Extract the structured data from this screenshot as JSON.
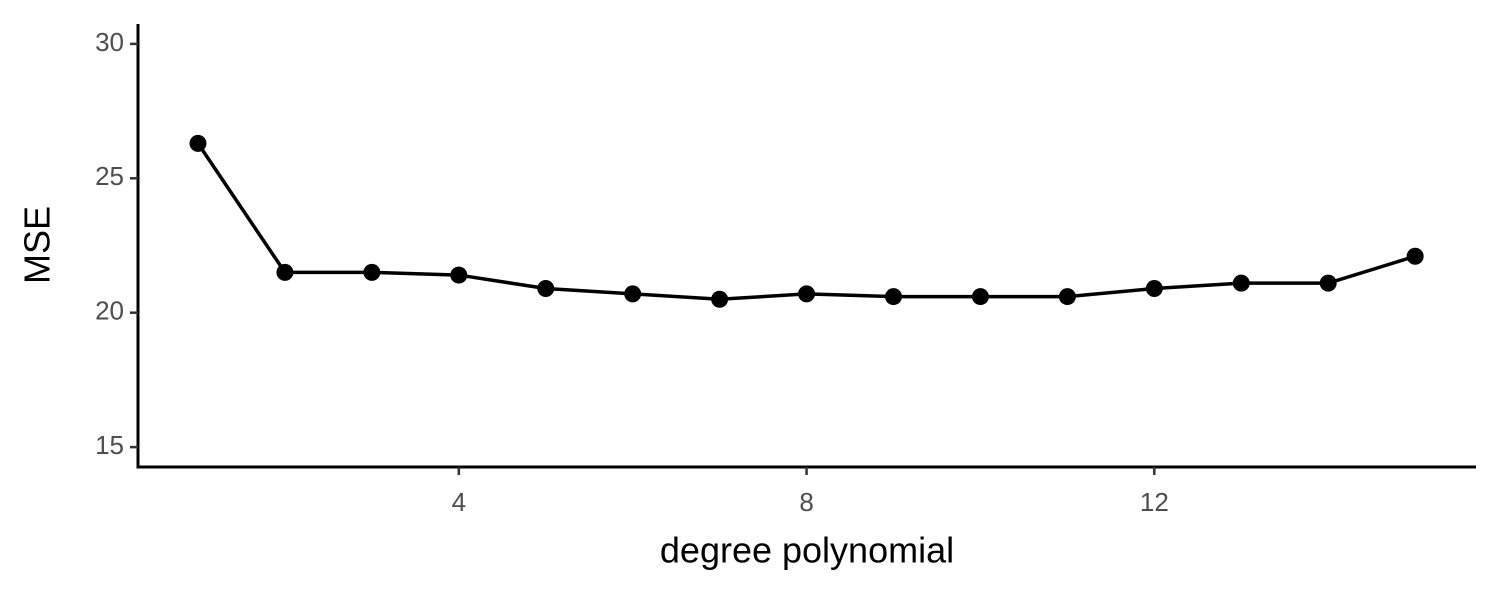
{
  "chart_data": {
    "type": "line",
    "x_label": "degree polynomial",
    "y_label": "MSE",
    "x": [
      1,
      2,
      3,
      4,
      5,
      6,
      7,
      8,
      9,
      10,
      11,
      12,
      13,
      14,
      15
    ],
    "series": [
      {
        "color": "#000000",
        "values": [
          26.3,
          21.5,
          21.5,
          21.4,
          20.9,
          20.7,
          20.5,
          20.7,
          20.6,
          20.6,
          20.6,
          20.9,
          21.1,
          21.1,
          22.1
        ]
      }
    ],
    "xlim": [
      0.31,
      15.7
    ],
    "ylim": [
      14.26,
      30.74
    ],
    "xticks": [
      4,
      8,
      12
    ],
    "yticks": [
      15,
      20,
      25,
      30
    ],
    "markers": true,
    "grid": false
  }
}
